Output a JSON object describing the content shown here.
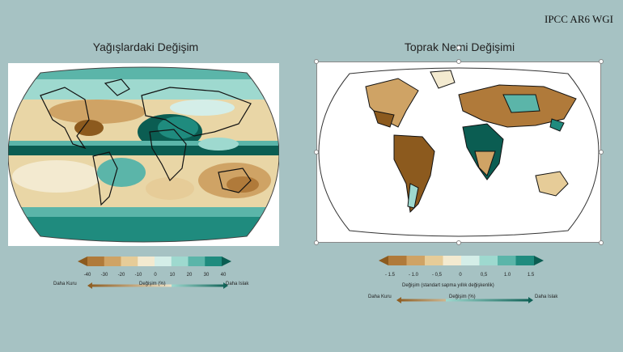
{
  "credit": "IPCC AR6 WGI",
  "left_panel": {
    "title": "Yağışlardaki Değişim",
    "colorbar": {
      "ticks": [
        "-40",
        "-30",
        "-20",
        "-10",
        "0",
        "10",
        "20",
        "30",
        "40"
      ],
      "colors": [
        "#8c5a1e",
        "#b07a3a",
        "#cfa365",
        "#e6cc98",
        "#f3ead0",
        "#d4eee8",
        "#9ed9cf",
        "#5bb5a9",
        "#1f8b7e",
        "#0b5d52"
      ]
    },
    "legend": {
      "dry": "Daha Kuru",
      "mid": "Değişim (%)",
      "wet": "Daha Islak"
    }
  },
  "right_panel": {
    "title": "Toprak Nemi Değişimi",
    "colorbar": {
      "ticks": [
        "- 1.5",
        "- 1.0",
        "- 0,5",
        "0",
        "0,5",
        "1.0",
        "1.5"
      ],
      "colors": [
        "#8c5a1e",
        "#b07a3a",
        "#cfa365",
        "#e6cc98",
        "#f3ead0",
        "#d4eee8",
        "#9ed9cf",
        "#5bb5a9",
        "#1f8b7e",
        "#0b5d52"
      ]
    },
    "caption": "Değişim (standart sapma yıllık değişkenlik)",
    "legend": {
      "dry": "Daha Kuru",
      "mid": "Değişim (%)",
      "wet": "Daha Islak"
    }
  }
}
